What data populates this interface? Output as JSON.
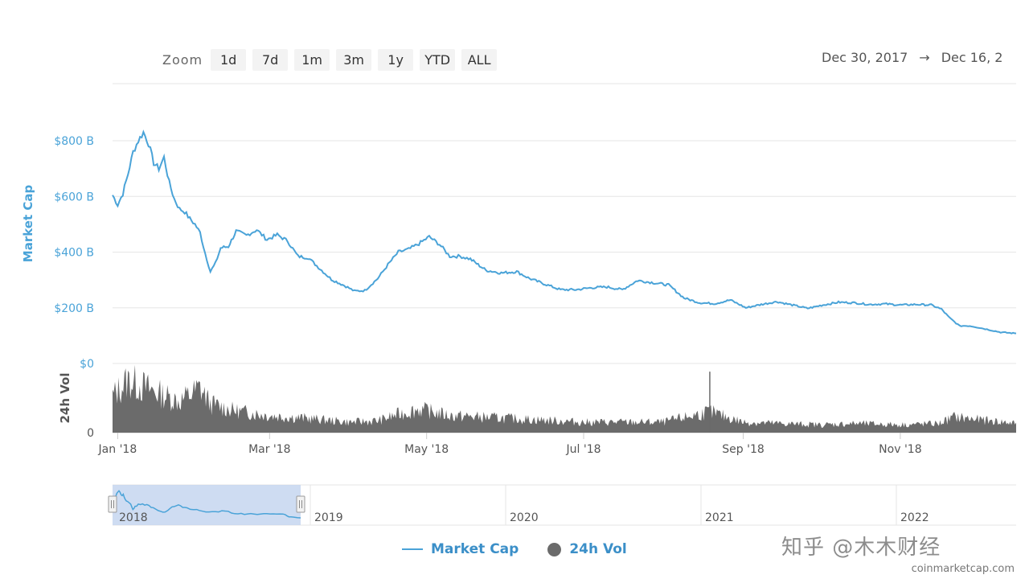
{
  "zoom": {
    "label": "Zoom",
    "buttons": [
      "1d",
      "7d",
      "1m",
      "3m",
      "1y",
      "YTD",
      "ALL"
    ]
  },
  "date_range": {
    "from": "Dec 30, 2017",
    "arrow": "→",
    "to": "Dec 16, 2"
  },
  "legend": {
    "market_cap": "Market Cap",
    "volume": "24h Vol"
  },
  "watermark": "知乎 @木木财经",
  "credit": "coinmarketcap.com",
  "colors": {
    "market_cap_line": "#4aa3d8",
    "volume_fill": "#6b6b6b",
    "navigator_selection": "#c6d6f0",
    "axis_label_blue": "#4aa3d8"
  },
  "chart_data": {
    "type": "line",
    "title": "",
    "xlabel": "",
    "ylabel": "Market Cap",
    "xlim": [
      "2017-12-30",
      "2018-12-16"
    ],
    "ylim": [
      0,
      900
    ],
    "y_unit": "B",
    "x_ticks": [
      {
        "date": "2018-01-01",
        "label": "Jan '18"
      },
      {
        "date": "2018-03-01",
        "label": "Mar '18"
      },
      {
        "date": "2018-05-01",
        "label": "May '18"
      },
      {
        "date": "2018-07-01",
        "label": "Jul '18"
      },
      {
        "date": "2018-09-01",
        "label": "Sep '18"
      },
      {
        "date": "2018-11-01",
        "label": "Nov '18"
      }
    ],
    "y_ticks": [
      {
        "value": 0,
        "label": "$0"
      },
      {
        "value": 200,
        "label": "$200 B"
      },
      {
        "value": 400,
        "label": "$400 B"
      },
      {
        "value": 600,
        "label": "$600 B"
      },
      {
        "value": 800,
        "label": "$800 B"
      }
    ],
    "series": [
      {
        "name": "Market Cap",
        "x": [
          "2017-12-30",
          "2018-01-01",
          "2018-01-03",
          "2018-01-05",
          "2018-01-07",
          "2018-01-09",
          "2018-01-11",
          "2018-01-13",
          "2018-01-15",
          "2018-01-17",
          "2018-01-19",
          "2018-01-21",
          "2018-01-23",
          "2018-01-25",
          "2018-01-27",
          "2018-01-29",
          "2018-01-31",
          "2018-02-02",
          "2018-02-04",
          "2018-02-06",
          "2018-02-08",
          "2018-02-10",
          "2018-02-13",
          "2018-02-16",
          "2018-02-20",
          "2018-02-24",
          "2018-02-28",
          "2018-03-04",
          "2018-03-08",
          "2018-03-12",
          "2018-03-16",
          "2018-03-20",
          "2018-03-25",
          "2018-03-30",
          "2018-04-03",
          "2018-04-07",
          "2018-04-12",
          "2018-04-16",
          "2018-04-20",
          "2018-04-24",
          "2018-04-28",
          "2018-05-02",
          "2018-05-06",
          "2018-05-10",
          "2018-05-14",
          "2018-05-18",
          "2018-05-24",
          "2018-05-30",
          "2018-06-05",
          "2018-06-10",
          "2018-06-16",
          "2018-06-22",
          "2018-06-28",
          "2018-07-04",
          "2018-07-10",
          "2018-07-16",
          "2018-07-22",
          "2018-07-28",
          "2018-08-03",
          "2018-08-09",
          "2018-08-15",
          "2018-08-21",
          "2018-08-27",
          "2018-09-02",
          "2018-09-08",
          "2018-09-14",
          "2018-09-20",
          "2018-09-26",
          "2018-10-02",
          "2018-10-08",
          "2018-10-14",
          "2018-10-20",
          "2018-10-26",
          "2018-11-01",
          "2018-11-07",
          "2018-11-13",
          "2018-11-17",
          "2018-11-20",
          "2018-11-24",
          "2018-11-28",
          "2018-12-02",
          "2018-12-06",
          "2018-12-10",
          "2018-12-16"
        ],
        "values": [
          605,
          570,
          610,
          680,
          760,
          800,
          830,
          790,
          720,
          700,
          740,
          650,
          590,
          555,
          545,
          520,
          500,
          470,
          395,
          330,
          360,
          415,
          420,
          475,
          460,
          480,
          445,
          462,
          440,
          385,
          380,
          345,
          302,
          280,
          260,
          262,
          305,
          355,
          400,
          410,
          430,
          455,
          428,
          385,
          385,
          375,
          335,
          325,
          330,
          305,
          285,
          265,
          265,
          272,
          275,
          265,
          298,
          290,
          282,
          235,
          218,
          215,
          228,
          200,
          212,
          222,
          210,
          198,
          210,
          220,
          218,
          212,
          214,
          210,
          212,
          210,
          195,
          165,
          135,
          135,
          128,
          120,
          112,
          108
        ]
      },
      {
        "name": "24h Vol",
        "x": [
          "2017-12-30",
          "2018-01-05",
          "2018-01-10",
          "2018-01-17",
          "2018-01-25",
          "2018-02-02",
          "2018-02-06",
          "2018-02-15",
          "2018-03-01",
          "2018-03-15",
          "2018-04-01",
          "2018-04-12",
          "2018-04-20",
          "2018-04-28",
          "2018-05-10",
          "2018-06-01",
          "2018-07-01",
          "2018-08-01",
          "2018-08-19",
          "2018-09-01",
          "2018-09-15",
          "2018-10-01",
          "2018-10-15",
          "2018-11-01",
          "2018-11-16",
          "2018-11-22",
          "2018-12-01",
          "2018-12-16"
        ],
        "values": [
          28,
          40,
          36,
          30,
          24,
          34,
          22,
          17,
          13,
          11,
          8,
          9,
          14,
          18,
          13,
          11,
          8,
          8,
          16,
          8,
          7,
          6,
          7,
          6,
          7,
          12,
          10,
          7
        ],
        "ylim": [
          0,
          50
        ],
        "ylabel": "24h Vol"
      }
    ],
    "navigator": {
      "x_ticks": [
        "2019",
        "2020",
        "2021",
        "2022"
      ],
      "selection_label": "2018",
      "selection": [
        "2018-01-01",
        "2018-12-16"
      ]
    },
    "legend_position": "bottom-center",
    "grid": true
  }
}
